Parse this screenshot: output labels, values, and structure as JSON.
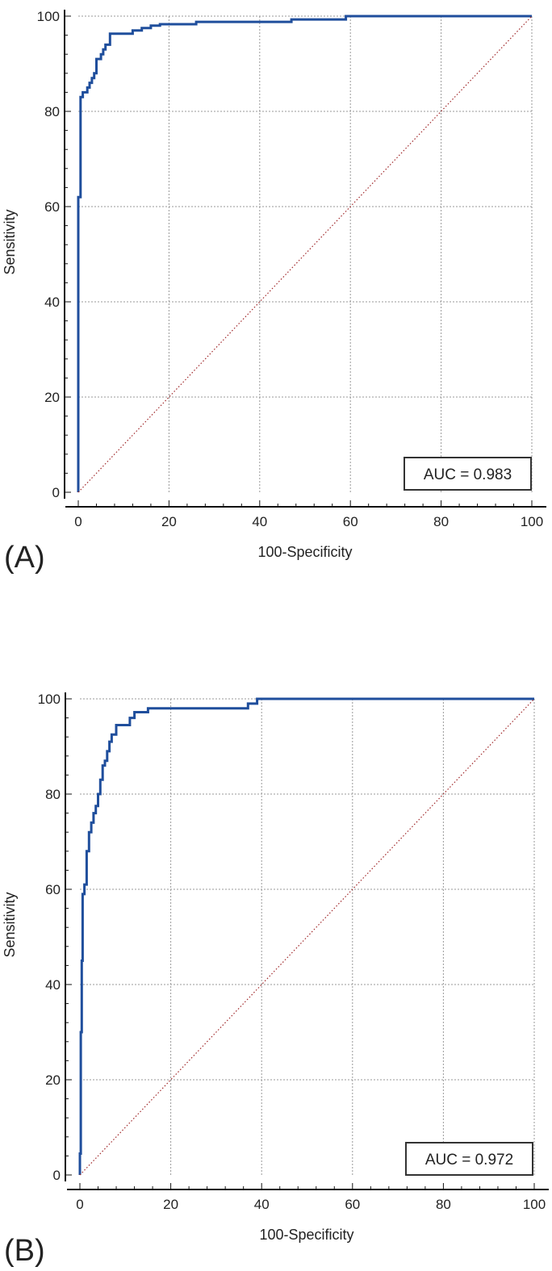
{
  "colors": {
    "roc": "#1f4e9c",
    "diagonal": "#a0282a",
    "grid": "#9a9a9a",
    "axis": "#111111"
  },
  "chart_data": [
    {
      "type": "line",
      "panel_label": "(A)",
      "xlabel": "100-Specificity",
      "ylabel": "Sensitivity",
      "xlim": [
        0,
        100
      ],
      "ylim": [
        0,
        100
      ],
      "xticks": [
        "0",
        "20",
        "40",
        "60",
        "80",
        "100"
      ],
      "yticks": [
        "0",
        "20",
        "40",
        "60",
        "80",
        "100"
      ],
      "grid": true,
      "annotation": "AUC = 0.983",
      "annotation_position": "bottom-right",
      "series": [
        {
          "role": "roc",
          "x": [
            0,
            0,
            0.5,
            0.5,
            1,
            1,
            2,
            2,
            2.5,
            2.5,
            3,
            3,
            3.5,
            3.5,
            4,
            4,
            5,
            5,
            5.5,
            5.5,
            6,
            6,
            7,
            7,
            12,
            12,
            14,
            14,
            16,
            16,
            18,
            18,
            26,
            26,
            47,
            47,
            59,
            59,
            100
          ],
          "y": [
            0,
            62,
            62,
            83,
            83,
            84,
            84,
            85,
            85,
            86,
            86,
            87,
            87,
            88,
            88,
            91,
            91,
            92,
            92,
            93,
            93,
            94,
            94,
            96.3,
            96.3,
            97,
            97,
            97.5,
            97.5,
            98,
            98,
            98.3,
            98.3,
            98.8,
            98.8,
            99.3,
            99.3,
            100,
            100
          ]
        },
        {
          "role": "reference",
          "x": [
            0,
            100
          ],
          "y": [
            0,
            100
          ]
        }
      ]
    },
    {
      "type": "line",
      "panel_label": "(B)",
      "xlabel": "100-Specificity",
      "ylabel": "Sensitivity",
      "xlim": [
        0,
        100
      ],
      "ylim": [
        0,
        100
      ],
      "xticks": [
        "0",
        "20",
        "40",
        "60",
        "80",
        "100"
      ],
      "yticks": [
        "0",
        "20",
        "40",
        "60",
        "80",
        "100"
      ],
      "grid": true,
      "annotation": "AUC = 0.972",
      "annotation_position": "bottom-right",
      "series": [
        {
          "role": "roc",
          "x": [
            0,
            0,
            0.2,
            0.2,
            0.4,
            0.4,
            0.6,
            0.6,
            1,
            1,
            1.5,
            1.5,
            2,
            2,
            2.5,
            2.5,
            3,
            3,
            3.5,
            3.5,
            4,
            4,
            4.5,
            4.5,
            5,
            5,
            5.5,
            5.5,
            6,
            6,
            6.5,
            6.5,
            7,
            7,
            8,
            8,
            11,
            11,
            12,
            12,
            15,
            15,
            37,
            37,
            39,
            39,
            100
          ],
          "y": [
            0,
            4.5,
            4.5,
            30,
            30,
            45,
            45,
            59,
            59,
            61,
            61,
            68,
            68,
            72,
            72,
            74,
            74,
            76,
            76,
            77.5,
            77.5,
            80,
            80,
            83,
            83,
            86,
            86,
            87,
            87,
            89,
            89,
            91,
            91,
            92.5,
            92.5,
            94.5,
            94.5,
            96,
            96,
            97.2,
            97.2,
            98,
            98,
            99,
            99,
            100,
            100
          ]
        },
        {
          "role": "reference",
          "x": [
            0,
            100
          ],
          "y": [
            0,
            100
          ]
        }
      ]
    }
  ]
}
